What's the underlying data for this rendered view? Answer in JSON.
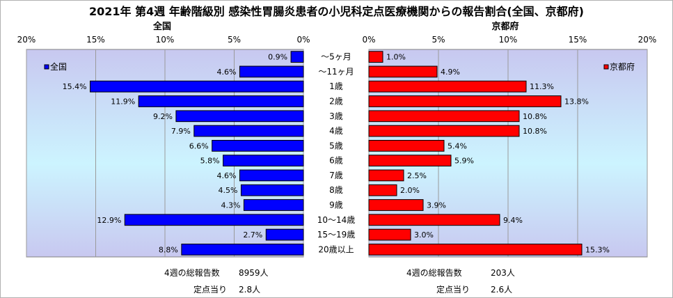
{
  "title": "2021年 第4週 年齢階級別 感染性胃腸炎患者の小児科定点医療機関からの報告割合(全国、京都府)",
  "chart_data": [
    {
      "type": "bar",
      "orientation": "horizontal",
      "title": "全国",
      "series": [
        {
          "name": "全国",
          "color": "#0000FF",
          "values": [
            0.9,
            4.6,
            15.4,
            11.9,
            9.2,
            7.9,
            6.6,
            5.8,
            4.6,
            4.5,
            4.3,
            12.9,
            2.7,
            8.8
          ]
        }
      ],
      "categories": [
        "～5ヶ月",
        "～11ヶ月",
        "1歳",
        "2歳",
        "3歳",
        "4歳",
        "5歳",
        "6歳",
        "7歳",
        "8歳",
        "9歳",
        "10～14歳",
        "15～19歳",
        "20歳以上"
      ],
      "xlim": [
        0,
        20
      ],
      "xticks": [
        "0%",
        "5%",
        "10%",
        "15%",
        "20%"
      ],
      "x_reversed": true,
      "data_label_suffix": "%",
      "legend_position": "top-left",
      "grid": true,
      "plot_background": "gradient light blue"
    },
    {
      "type": "bar",
      "orientation": "horizontal",
      "title": "京都府",
      "series": [
        {
          "name": "京都府",
          "color": "#FF0000",
          "values": [
            1.0,
            4.9,
            11.3,
            13.8,
            10.8,
            10.8,
            5.4,
            5.9,
            2.5,
            2.0,
            3.9,
            9.4,
            3.0,
            15.3
          ]
        }
      ],
      "categories": [
        "～5ヶ月",
        "～11ヶ月",
        "1歳",
        "2歳",
        "3歳",
        "4歳",
        "5歳",
        "6歳",
        "7歳",
        "8歳",
        "9歳",
        "10～14歳",
        "15～19歳",
        "20歳以上"
      ],
      "xlim": [
        0,
        20
      ],
      "xticks": [
        "0%",
        "5%",
        "10%",
        "15%",
        "20%"
      ],
      "x_reversed": false,
      "data_label_suffix": "%",
      "legend_position": "top-right",
      "grid": true,
      "plot_background": "gradient light blue"
    }
  ],
  "footer": {
    "national_total_label": "4週の総報告数",
    "national_total_value": "8959人",
    "national_per_site_label": "定点当り",
    "national_per_site_value": "2.8人",
    "kyoto_total_label": "4週の総報告数",
    "kyoto_total_value": "203人",
    "kyoto_per_site_label": "定点当り",
    "kyoto_per_site_value": "2.6人"
  }
}
